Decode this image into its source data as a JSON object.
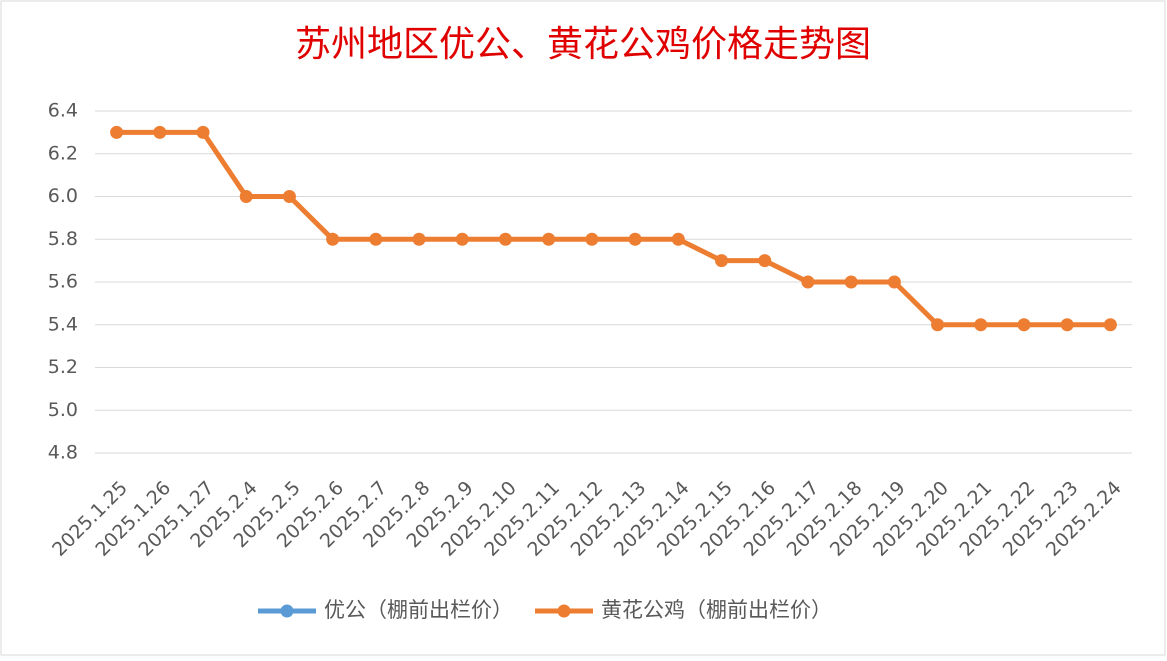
{
  "chart_data": {
    "type": "line",
    "title": "苏州地区优公、黄花公鸡价格走势图",
    "categories": [
      "2025.1.25",
      "2025.1.26",
      "2025.1.27",
      "2025.2.4",
      "2025.2.5",
      "2025.2.6",
      "2025.2.7",
      "2025.2.8",
      "2025.2.9",
      "2025.2.10",
      "2025.2.11",
      "2025.2.12",
      "2025.2.13",
      "2025.2.14",
      "2025.2.15",
      "2025.2.16",
      "2025.2.17",
      "2025.2.18",
      "2025.2.19",
      "2025.2.20",
      "2025.2.21",
      "2025.2.22",
      "2025.2.23",
      "2025.2.24"
    ],
    "series": [
      {
        "name": "优公（棚前出栏价）",
        "color": "#5b9bd5",
        "values": [
          null,
          null,
          null,
          null,
          null,
          null,
          null,
          null,
          null,
          null,
          null,
          null,
          null,
          null,
          null,
          null,
          null,
          null,
          null,
          null,
          null,
          null,
          null,
          null
        ]
      },
      {
        "name": "黄花公鸡（棚前出栏价）",
        "color": "#ed7d31",
        "values": [
          6.3,
          6.3,
          6.3,
          6.0,
          6.0,
          5.8,
          5.8,
          5.8,
          5.8,
          5.8,
          5.8,
          5.8,
          5.8,
          5.8,
          5.7,
          5.7,
          5.6,
          5.6,
          5.6,
          5.4,
          5.4,
          5.4,
          5.4,
          5.4
        ]
      }
    ],
    "ylim": [
      4.8,
      6.4
    ],
    "yticks": [
      4.8,
      {
        "value": 5.0,
        "label": "5.0"
      },
      5.2,
      5.4,
      5.6,
      5.8,
      {
        "value": 6.0,
        "label": "6.0"
      },
      6.2,
      6.4
    ],
    "grid": true,
    "legend": "bottom"
  }
}
